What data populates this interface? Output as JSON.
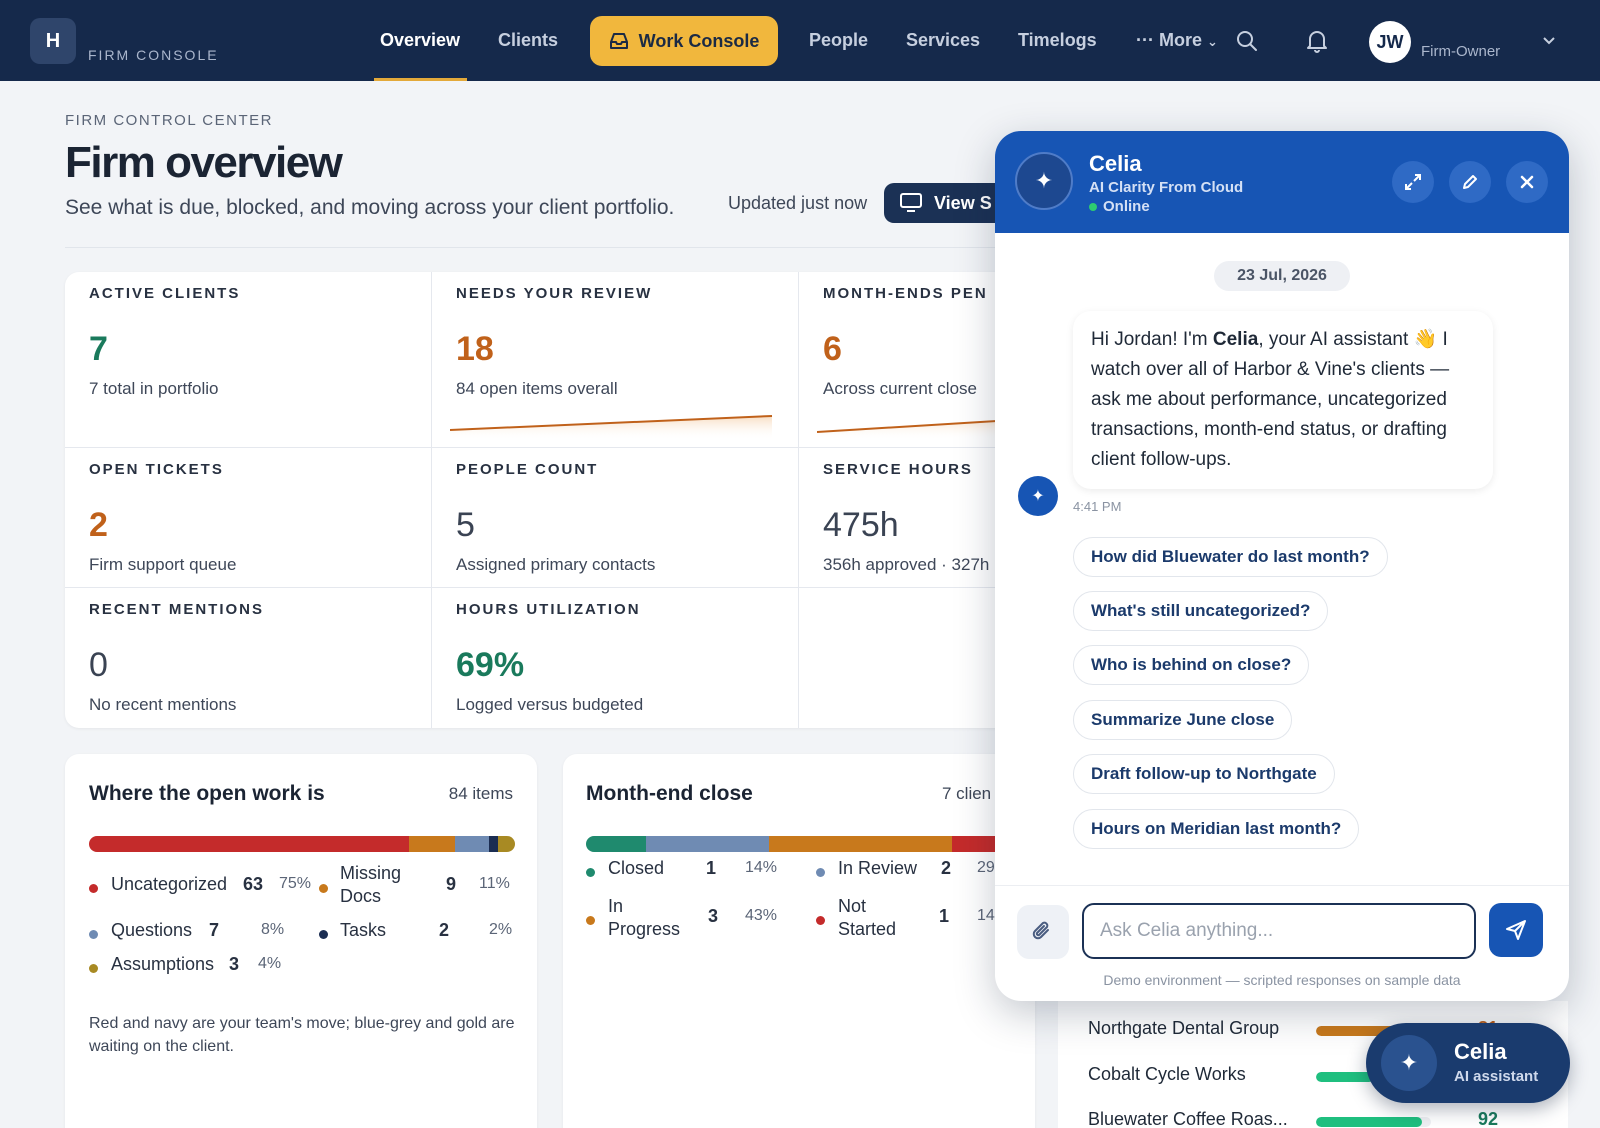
{
  "nav": {
    "logo_letter": "H",
    "brand": "FIRM CONSOLE",
    "items": {
      "overview": "Overview",
      "clients": "Clients",
      "work_console": "Work Console",
      "people": "People",
      "services": "Services",
      "timelogs": "Timelogs",
      "more": "More"
    },
    "user_initials": "JW",
    "user_role": "Firm-Owner"
  },
  "header": {
    "eyebrow": "FIRM CONTROL CENTER",
    "title": "Firm overview",
    "subtitle": "See what is due, blocked, and moving across your client portfolio.",
    "updated": "Updated just now",
    "view_button": "View S"
  },
  "stats": {
    "active_clients": {
      "label": "ACTIVE CLIENTS",
      "value": "7",
      "sub": "7 total in portfolio"
    },
    "needs_review": {
      "label": "NEEDS YOUR REVIEW",
      "value": "18",
      "sub": "84 open items overall"
    },
    "month_ends": {
      "label": "MONTH-ENDS PEN",
      "value": "6",
      "sub": "Across current close"
    },
    "open_tickets": {
      "label": "OPEN TICKETS",
      "value": "2",
      "sub": "Firm support queue"
    },
    "people_count": {
      "label": "PEOPLE COUNT",
      "value": "5",
      "sub": "Assigned primary contacts"
    },
    "service_hours": {
      "label": "SERVICE HOURS",
      "value": "475h",
      "sub": "356h approved · 327h"
    },
    "recent_mentions": {
      "label": "RECENT MENTIONS",
      "value": "0",
      "sub": "No recent mentions"
    },
    "hours_utilization": {
      "label": "HOURS UTILIZATION",
      "value": "69%",
      "sub": "Logged versus budgeted"
    }
  },
  "open_work": {
    "title": "Where the open work is",
    "count": "84 items",
    "segments": [
      {
        "name": "Uncategorized",
        "value": "63",
        "pct": "75%",
        "share": 75,
        "color": "#c42b2b"
      },
      {
        "name": "Missing Docs",
        "value": "9",
        "pct": "11%",
        "share": 11,
        "color": "#c8791c"
      },
      {
        "name": "Questions",
        "value": "7",
        "pct": "8%",
        "share": 8,
        "color": "#6f8bb3"
      },
      {
        "name": "Tasks",
        "value": "2",
        "pct": "2%",
        "share": 2,
        "color": "#1b2d52"
      },
      {
        "name": "Assumptions",
        "value": "3",
        "pct": "4%",
        "share": 4,
        "color": "#a88a23"
      }
    ],
    "missing_line1": "Missing",
    "missing_line2": "Docs",
    "note": "Red and navy are your team's move; blue-grey and gold are waiting on the client."
  },
  "month_end": {
    "title": "Month-end close",
    "count": "7 clien",
    "segments": [
      {
        "name": "Closed",
        "value": "1",
        "pct": "14%",
        "share": 14,
        "color": "#1f8a6e"
      },
      {
        "name": "In Review",
        "value": "2",
        "pct": "29",
        "share": 29,
        "color": "#6f8bb3"
      },
      {
        "name": "In Progress",
        "value": "3",
        "pct": "43%",
        "share": 43,
        "color": "#c8791c"
      },
      {
        "name": "Not Started",
        "value": "1",
        "pct": "14",
        "share": 14,
        "color": "#c42b2b"
      }
    ],
    "in_line1": "In",
    "in_line2": "Progress",
    "not_line1": "Not",
    "not_line2": "Started"
  },
  "chat": {
    "name": "Celia",
    "subtitle": "AI Clarity From Cloud",
    "status": "Online",
    "date": "23 Jul, 2026",
    "greeting_pre": "Hi Jordan! I'm ",
    "greeting_name": "Celia",
    "greeting_post": ", your AI assistant 👋 I watch over all of Harbor & Vine's clients — ask me about performance, uncategorized transactions, month-end status, or drafting client follow-ups.",
    "time": "4:41 PM",
    "suggestions": [
      "How did Bluewater do last month?",
      "What's still uncategorized?",
      "Who is behind on close?",
      "Summarize June close",
      "Draft follow-up to Northgate",
      "Hours on Meridian last month?"
    ],
    "placeholder": "Ask Celia anything...",
    "demo_note": "Demo environment — scripted responses on sample data"
  },
  "rankings": [
    {
      "name": "Northgate Dental Group",
      "score": "81",
      "fill": 0.81,
      "color": "#c8791c"
    },
    {
      "name": "Cobalt Cycle Works",
      "score": "",
      "fill": 0.5,
      "color": "#1fbf7f"
    },
    {
      "name": "Bluewater Coffee Roas...",
      "score": "92",
      "fill": 0.92,
      "color": "#1fbf7f"
    }
  ],
  "fab": {
    "name": "Celia",
    "subtitle": "AI assistant"
  }
}
